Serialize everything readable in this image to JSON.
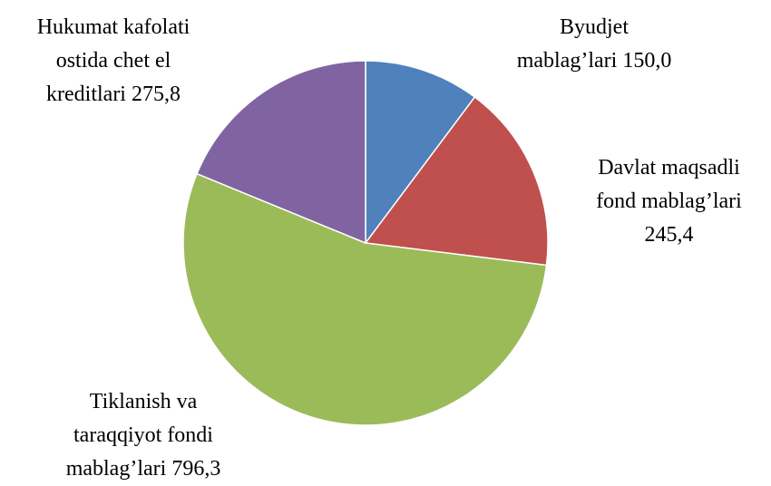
{
  "chart_data": {
    "type": "pie",
    "categories": [
      "Byudjet mablag’lari",
      "Davlat maqsadli fond mablag’lari",
      "Tiklanish va taraqqiyot fondi mablag’lari",
      "Hukumat kafolati ostida chet el kreditlari"
    ],
    "values": [
      150.0,
      245.4,
      796.3,
      275.8
    ],
    "value_labels": [
      "150,0",
      "245,4",
      "796,3",
      "275,8"
    ],
    "colors": [
      "#4f81bd",
      "#c0504d",
      "#9bbb59",
      "#8064a2"
    ]
  }
}
